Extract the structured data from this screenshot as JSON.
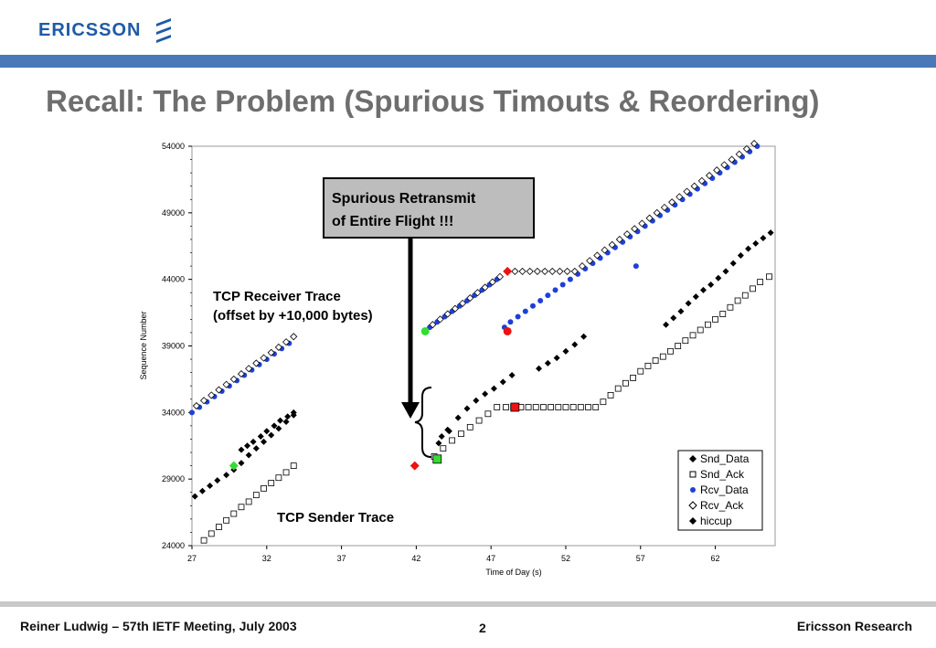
{
  "header": {
    "brand": "ERICSSON",
    "brand_color": "#1f5aa6",
    "logo_icon": "ericsson-logo-icon"
  },
  "slide": {
    "title": "Recall: The Problem (Spurious Timouts & Reordering)"
  },
  "footer": {
    "left": "Reiner Ludwig – 57th IETF Meeting, July 2003",
    "page": "2",
    "right": "Ericsson Research"
  },
  "annotations": {
    "callout_line1": "Spurious Retransmit",
    "callout_line2": "of Entire Flight !!!",
    "receiver_line1": "TCP Receiver Trace",
    "receiver_line2": "(offset by +10,000 bytes)",
    "sender": "TCP Sender Trace"
  },
  "chart_data": {
    "type": "scatter",
    "xlabel": "Time of Day (s)",
    "ylabel": "Sequence Number",
    "xlim": [
      27,
      66
    ],
    "ylim": [
      24000,
      54000
    ],
    "xticks": [
      27,
      32,
      37,
      42,
      47,
      52,
      57,
      62
    ],
    "yticks": [
      24000,
      29000,
      34000,
      39000,
      44000,
      49000,
      54000
    ],
    "legend_position": "bottom-right",
    "legend": [
      "Snd_Data",
      "Snd_Ack",
      "Rcv_Data",
      "Rcv_Ack",
      "hiccup"
    ],
    "series": [
      {
        "name": "Snd_Data",
        "marker": "diamond-filled",
        "color": "#000000",
        "x": [
          27.2,
          27.7,
          28.2,
          28.7,
          29.3,
          29.8,
          30.3,
          30.8,
          31.3,
          31.8,
          32.3,
          32.8,
          33.3,
          33.8,
          43.5,
          44.2,
          44.8,
          45.4,
          46.0,
          46.6,
          47.2,
          47.8,
          48.4,
          50.2,
          50.8,
          51.4,
          52.0,
          52.6,
          53.2,
          58.7,
          59.2,
          59.7,
          60.2,
          60.7,
          61.2,
          61.7,
          62.2,
          62.7,
          63.2,
          63.7,
          64.2,
          64.7,
          65.2,
          65.7
        ],
        "y": [
          27700,
          28100,
          28500,
          28900,
          29300,
          29700,
          30200,
          30800,
          31300,
          31800,
          32300,
          32800,
          33300,
          33800,
          31700,
          32600,
          33600,
          34300,
          34900,
          35400,
          35800,
          36300,
          36800,
          37300,
          37700,
          38100,
          38600,
          39100,
          39700,
          40600,
          41100,
          41600,
          42200,
          42700,
          43200,
          43600,
          44100,
          44600,
          45200,
          45800,
          46300,
          46700,
          47100,
          47500
        ]
      },
      {
        "name": "Snd_Ack",
        "marker": "square-open",
        "color": "#000000",
        "x": [
          27.8,
          28.3,
          28.8,
          29.3,
          29.8,
          30.3,
          30.8,
          31.3,
          31.8,
          32.3,
          32.8,
          33.3,
          33.8,
          43.2,
          43.8,
          44.4,
          45.0,
          45.6,
          46.2,
          46.8,
          47.4,
          48.0,
          48.5,
          49.0,
          49.5,
          50.0,
          50.5,
          51.0,
          51.5,
          52.0,
          52.5,
          53.0,
          53.5,
          54.0,
          54.5,
          55.0,
          55.5,
          56.0,
          56.5,
          57.0,
          57.5,
          58.0,
          58.5,
          59.0,
          59.5,
          60.0,
          60.5,
          61.0,
          61.5,
          62.0,
          62.5,
          63.0,
          63.5,
          64.0,
          64.5,
          65.0,
          65.6
        ],
        "y": [
          24400,
          24900,
          25400,
          25900,
          26400,
          26900,
          27300,
          27800,
          28300,
          28700,
          29100,
          29500,
          30000,
          30700,
          31300,
          31900,
          32400,
          32900,
          33400,
          33900,
          34400,
          34400,
          34400,
          34400,
          34400,
          34400,
          34400,
          34400,
          34400,
          34400,
          34400,
          34400,
          34400,
          34400,
          34800,
          35300,
          35800,
          36200,
          36600,
          37100,
          37500,
          37900,
          38200,
          38600,
          39000,
          39400,
          39800,
          40200,
          40600,
          41000,
          41400,
          41900,
          42400,
          42800,
          43300,
          43800,
          44200
        ]
      },
      {
        "name": "Rcv_Data",
        "marker": "circle-filled",
        "color": "#1f3fd6",
        "x": [
          27.0,
          27.5,
          28.0,
          28.5,
          29.0,
          29.5,
          30.0,
          30.5,
          31.0,
          31.5,
          32.0,
          32.5,
          33.0,
          33.5,
          42.9,
          43.4,
          43.9,
          44.4,
          44.9,
          45.4,
          45.9,
          46.4,
          46.9,
          47.4,
          47.9,
          48.3,
          48.8,
          49.3,
          49.8,
          50.3,
          50.8,
          51.3,
          51.8,
          52.3,
          52.8,
          53.3,
          53.8,
          54.3,
          54.8,
          55.3,
          55.8,
          56.3,
          56.8,
          57.3,
          57.8,
          58.3,
          58.8,
          59.3,
          59.8,
          60.3,
          60.8,
          61.3,
          61.8,
          62.3,
          62.8,
          63.3,
          63.8,
          64.3,
          64.8,
          56.7
        ],
        "y": [
          34000,
          34400,
          34800,
          35200,
          35600,
          36000,
          36400,
          36800,
          37200,
          37600,
          38000,
          38400,
          38800,
          39200,
          40400,
          40800,
          41200,
          41600,
          42000,
          42400,
          42800,
          43200,
          43600,
          44000,
          40400,
          40800,
          41200,
          41600,
          42000,
          42400,
          42800,
          43200,
          43600,
          44000,
          44400,
          44800,
          45200,
          45600,
          46000,
          46400,
          46800,
          47200,
          47600,
          48000,
          48400,
          48800,
          49200,
          49600,
          50000,
          50400,
          50800,
          51200,
          51600,
          52000,
          52400,
          52800,
          53200,
          53600,
          54000,
          45000
        ]
      },
      {
        "name": "Rcv_Ack",
        "marker": "diamond-open",
        "color": "#000000",
        "x": [
          27.3,
          27.8,
          28.3,
          28.8,
          29.3,
          29.8,
          30.3,
          30.8,
          31.3,
          31.8,
          32.3,
          32.8,
          33.3,
          33.8,
          43.1,
          43.6,
          44.1,
          44.6,
          45.1,
          45.6,
          46.1,
          46.6,
          47.1,
          47.6,
          48.1,
          48.6,
          49.1,
          49.6,
          50.1,
          50.6,
          51.1,
          51.6,
          52.1,
          52.6,
          53.1,
          53.6,
          54.1,
          54.6,
          55.1,
          55.6,
          56.1,
          56.6,
          57.1,
          57.6,
          58.1,
          58.6,
          59.1,
          59.6,
          60.1,
          60.6,
          61.1,
          61.6,
          62.1,
          62.6,
          63.1,
          63.6,
          64.1,
          64.6
        ],
        "y": [
          34500,
          34900,
          35300,
          35700,
          36100,
          36500,
          36900,
          37300,
          37700,
          38100,
          38500,
          38900,
          39300,
          39700,
          40600,
          41000,
          41400,
          41800,
          42200,
          42600,
          43000,
          43400,
          43800,
          44200,
          44600,
          44600,
          44600,
          44600,
          44600,
          44600,
          44600,
          44600,
          44600,
          44600,
          45000,
          45400,
          45800,
          46200,
          46600,
          47000,
          47400,
          47800,
          48200,
          48600,
          49000,
          49400,
          49800,
          50200,
          50600,
          51000,
          51400,
          51800,
          52200,
          52600,
          53000,
          53400,
          53800,
          54200
        ]
      },
      {
        "name": "hiccup",
        "marker": "diamond-filled",
        "color": "#000000",
        "x": [
          30.3,
          30.7,
          31.1,
          31.6,
          32.0,
          32.5,
          32.9,
          33.4,
          33.8,
          43.7,
          44.1
        ],
        "y": [
          31200,
          31500,
          31800,
          32200,
          32600,
          33000,
          33400,
          33700,
          34000,
          32200,
          32700
        ]
      }
    ],
    "highlights": [
      {
        "marker": "diamond-filled",
        "color": "#33dd33",
        "x": 29.8,
        "y": 30000
      },
      {
        "marker": "circle-filled",
        "color": "#33dd33",
        "x": 42.6,
        "y": 40100
      },
      {
        "marker": "square-filled",
        "color": "#33dd33",
        "x": 43.4,
        "y": 30500
      },
      {
        "marker": "diamond-filled",
        "color": "#ee1111",
        "x": 41.9,
        "y": 30000
      },
      {
        "marker": "circle-filled",
        "color": "#ee1111",
        "x": 48.1,
        "y": 40100
      },
      {
        "marker": "diamond-filled",
        "color": "#ee1111",
        "x": 48.1,
        "y": 44600
      },
      {
        "marker": "square-filled",
        "color": "#ee1111",
        "x": 48.6,
        "y": 34400
      }
    ]
  }
}
